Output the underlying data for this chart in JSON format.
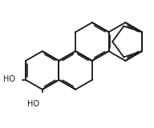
{
  "bg_color": "#ffffff",
  "line_color": "#1a1a1a",
  "line_width": 1.3,
  "oh_fontsize": 7.0,
  "figsize": [
    1.92,
    1.6
  ],
  "dpi": 100
}
